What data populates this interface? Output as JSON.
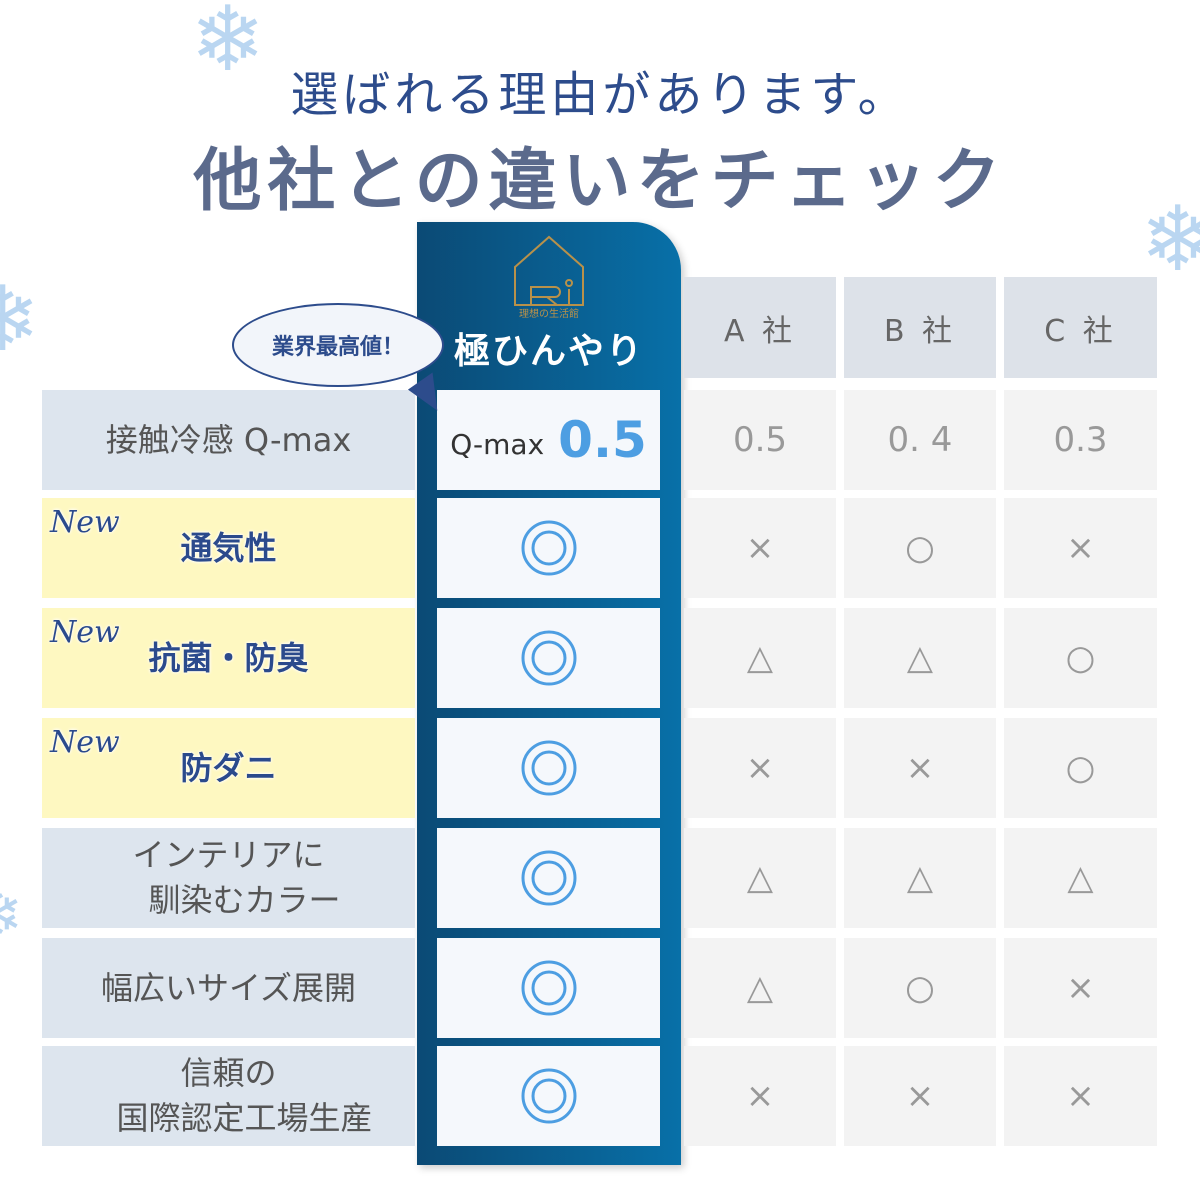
{
  "title_line1": "選ばれる理由があります。",
  "title_line2": "他社との違いをチェック",
  "logo_text": "理想の生活館",
  "brand": "極ひんやり",
  "bubble": "業界最高値！",
  "competitors": [
    "A 社",
    "B 社",
    "C 社"
  ],
  "colors": {
    "highlight": "#0b5c8e",
    "accent": "#4d9ee2",
    "new_row": "#fef8c1",
    "title": "#2d4c8c"
  },
  "rows": [
    {
      "label": "接触冷感 Q-max",
      "new": false,
      "ours_prefix": "Q-max",
      "ours": "0.5",
      "others": [
        "0.5",
        "0. 4",
        "0.3"
      ]
    },
    {
      "label": "通気性",
      "new": true,
      "ours": "◎",
      "others": [
        "×",
        "○",
        "×"
      ]
    },
    {
      "label": "抗菌・防臭",
      "new": true,
      "ours": "◎",
      "others": [
        "△",
        "△",
        "○"
      ]
    },
    {
      "label": "防ダニ",
      "new": true,
      "ours": "◎",
      "others": [
        "×",
        "×",
        "○"
      ]
    },
    {
      "label": "インテリアに\n　馴染むカラー",
      "new": false,
      "ours": "◎",
      "others": [
        "△",
        "△",
        "△"
      ]
    },
    {
      "label": "幅広いサイズ展開",
      "new": false,
      "ours": "◎",
      "others": [
        "△",
        "○",
        "×"
      ]
    },
    {
      "label": "信頼の\n　国際認定工場生産",
      "new": false,
      "ours": "◎",
      "others": [
        "×",
        "×",
        "×"
      ]
    }
  ],
  "new_tag": "New"
}
